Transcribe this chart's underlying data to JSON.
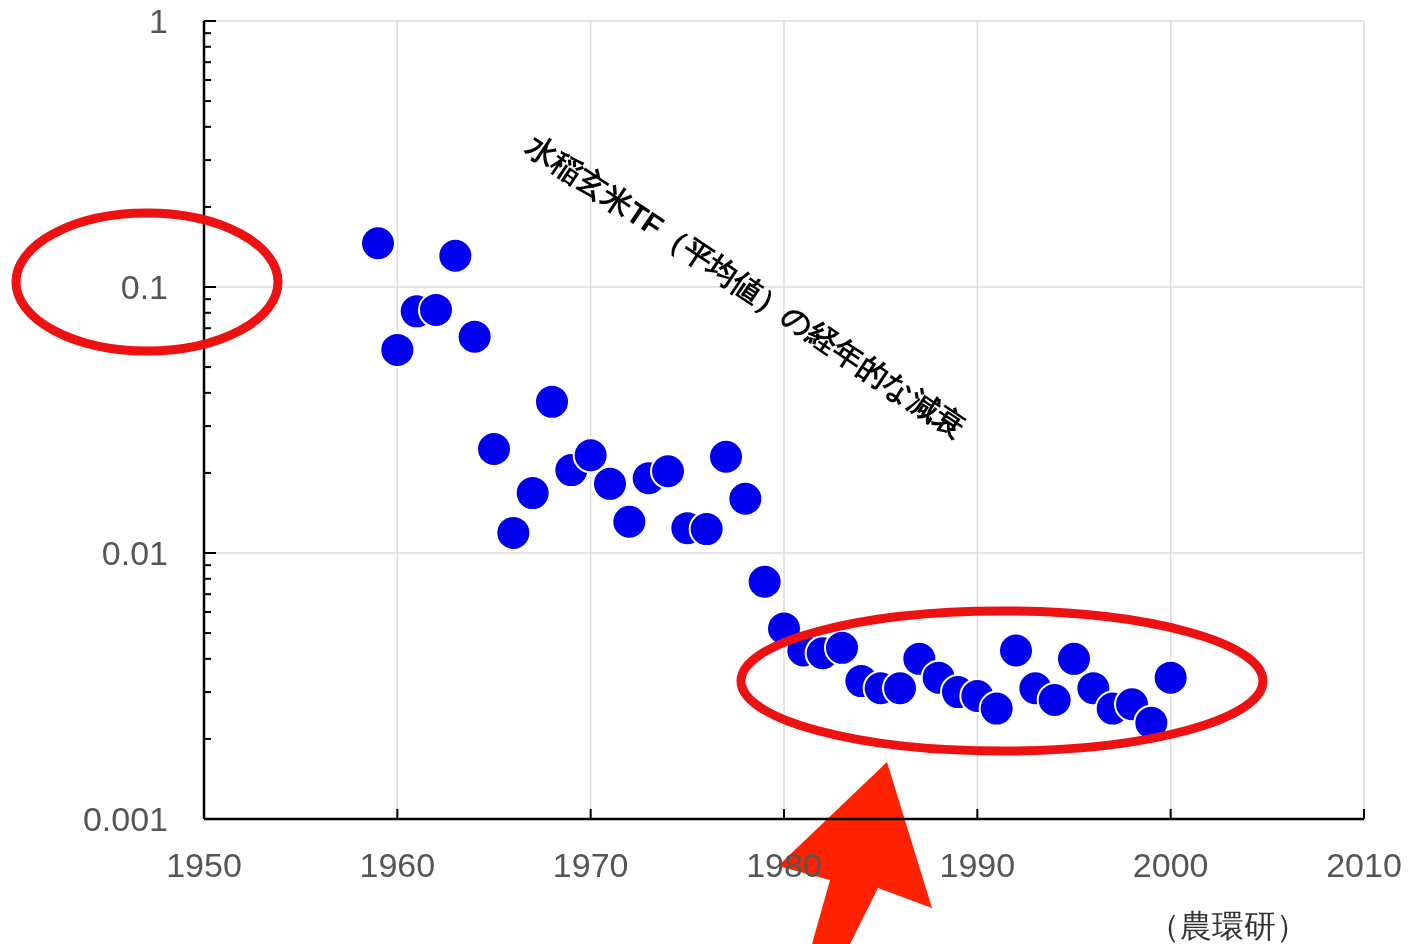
{
  "chart_data": {
    "type": "scatter",
    "log": "y",
    "grid": true,
    "marker": "circle",
    "xlim": [
      1950,
      2010
    ],
    "xticks": [
      1950,
      1960,
      1970,
      1980,
      1990,
      2000,
      2010
    ],
    "ylim": [
      0.001,
      1
    ],
    "yticks": [
      {
        "value": 0.001,
        "label": "0.001"
      },
      {
        "value": 0.002,
        "label": null
      },
      {
        "value": 0.003,
        "label": null
      },
      {
        "value": 0.004,
        "label": null
      },
      {
        "value": 0.005,
        "label": null
      },
      {
        "value": 0.006,
        "label": null
      },
      {
        "value": 0.007,
        "label": null
      },
      {
        "value": 0.008,
        "label": null
      },
      {
        "value": 0.009,
        "label": null
      },
      {
        "value": 0.01,
        "label": "0.01"
      },
      {
        "value": 0.02,
        "label": null
      },
      {
        "value": 0.03,
        "label": null
      },
      {
        "value": 0.04,
        "label": null
      },
      {
        "value": 0.05,
        "label": null
      },
      {
        "value": 0.06,
        "label": null
      },
      {
        "value": 0.07,
        "label": null
      },
      {
        "value": 0.08,
        "label": null
      },
      {
        "value": 0.09,
        "label": null
      },
      {
        "value": 0.1,
        "label": "0.1"
      },
      {
        "value": 0.2,
        "label": null
      },
      {
        "value": 0.3,
        "label": null
      },
      {
        "value": 0.4,
        "label": null
      },
      {
        "value": 0.5,
        "label": null
      },
      {
        "value": 0.6,
        "label": null
      },
      {
        "value": 0.7,
        "label": null
      },
      {
        "value": 0.8,
        "label": null
      },
      {
        "value": 0.9,
        "label": null
      },
      {
        "value": 1,
        "label": "1"
      }
    ],
    "x": [
      1959,
      1960,
      1961,
      1962,
      1963,
      1964,
      1965,
      1966,
      1967,
      1968,
      1969,
      1970,
      1971,
      1972,
      1973,
      1974,
      1975,
      1976,
      1977,
      1978,
      1979,
      1980,
      1981,
      1982,
      1983,
      1984,
      1985,
      1986,
      1987,
      1988,
      1989,
      1990,
      1991,
      1992,
      1993,
      1994,
      1995,
      1996,
      1997,
      1998,
      1999,
      2000
    ],
    "series": [
      {
        "color": "#0000ee",
        "values": [
          0.146,
          0.058,
          0.081,
          0.082,
          0.131,
          0.065,
          0.0246,
          0.0119,
          0.0168,
          0.037,
          0.0205,
          0.0233,
          0.0182,
          0.0131,
          0.0191,
          0.0203,
          0.0124,
          0.0123,
          0.023,
          0.016,
          0.0078,
          0.0052,
          0.0043,
          0.0042,
          0.0044,
          0.0033,
          0.0031,
          0.0031,
          0.004,
          0.0034,
          0.003,
          0.0029,
          0.0026,
          0.0043,
          0.0031,
          0.0028,
          0.004,
          0.0031,
          0.0026,
          0.0027,
          0.0023,
          0.0034
        ]
      }
    ],
    "annotations": [
      "水稲玄米TF（平均値）の経年的な減衰",
      "（農環研）"
    ]
  }
}
